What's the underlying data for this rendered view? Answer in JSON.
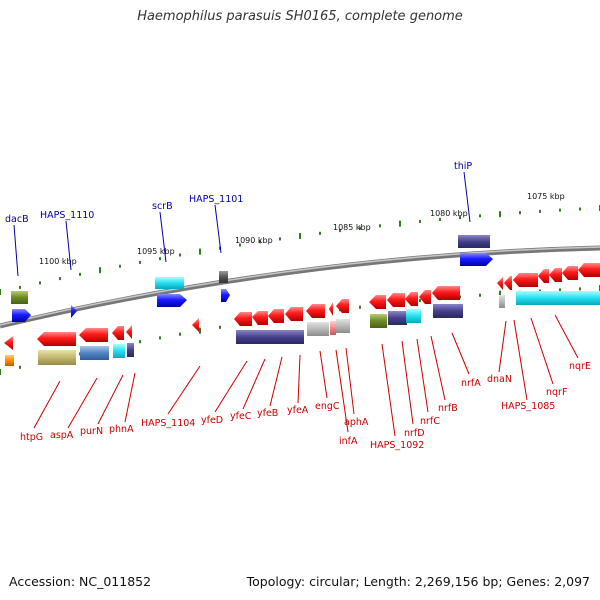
{
  "title": "Haemophilus parasuis SH0165, complete genome",
  "footer": {
    "accession": "Accession: NC_011852",
    "topology": "Topology: circular; Length: 2,269,156 bp; Genes: 2,097"
  },
  "colors": {
    "backbone": "#888888",
    "tick": "#2e7d1e",
    "red_gene": "#e60000",
    "blue_gene": "#1a1aff",
    "label_red": "#cc0000",
    "label_blue": "#0000aa",
    "label_black": "#111111"
  },
  "scale_labels": [
    "1100 kbp",
    "1095 kbp",
    "1090 kbp",
    "1085 kbp",
    "1080 kbp",
    "1075 kbp"
  ],
  "upper_gene_labels": [
    "dacB",
    "HAPS_1110",
    "scrB",
    "HAPS_1101",
    "thiP"
  ],
  "lower_gene_labels": [
    "htpG",
    "aspA",
    "purN",
    "phnA",
    "HAPS_1104",
    "yfeD",
    "yfeC",
    "yfeB",
    "yfeA",
    "engC",
    "aphA",
    "infA",
    "HAPS_1092",
    "nrfD",
    "nrfC",
    "nrfB",
    "nrfA",
    "dnaN",
    "HAPS_1085",
    "nqrF",
    "nqrE"
  ]
}
